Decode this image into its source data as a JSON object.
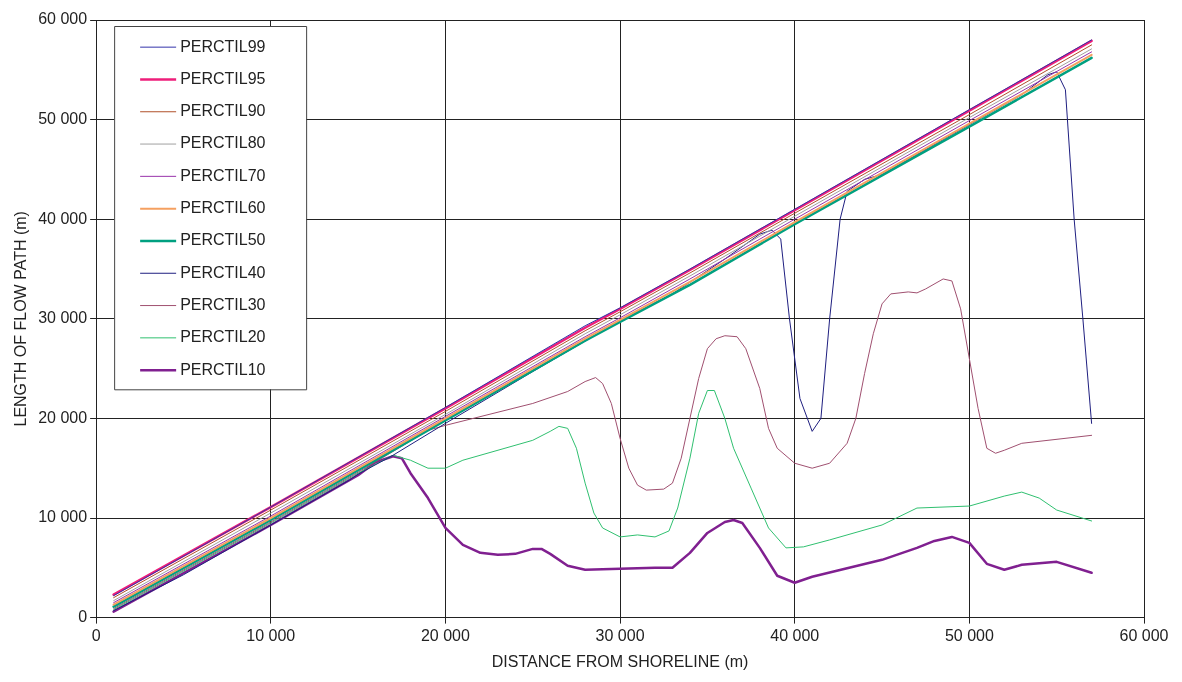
{
  "chart_data": {
    "type": "line",
    "xlabel": "DISTANCE FROM SHORELINE (m)",
    "ylabel": "LENGTH OF FLOW PATH (m)",
    "xlim": [
      0,
      60000
    ],
    "ylim": [
      0,
      60000
    ],
    "xticks": [
      0,
      {
        "value": 10000,
        "label": "10 000"
      },
      {
        "value": 20000,
        "label": "20 000"
      },
      {
        "value": 30000,
        "label": "30 000"
      },
      {
        "value": 40000,
        "label": "40 000"
      },
      {
        "value": 50000,
        "label": "50 000"
      },
      {
        "value": 60000,
        "label": "60 000"
      }
    ],
    "yticks": [
      0,
      {
        "value": 10000,
        "label": "10 000"
      },
      {
        "value": 20000,
        "label": "20 000"
      },
      {
        "value": 30000,
        "label": "30 000"
      },
      {
        "value": 40000,
        "label": "40 000"
      },
      {
        "value": 50000,
        "label": "50 000"
      },
      {
        "value": 60000,
        "label": "60 000"
      }
    ],
    "grid": true,
    "legend": "top left",
    "marker": "none",
    "line_style": "solid",
    "series": [
      {
        "name": "PERCTIL99",
        "color": "#3333aa",
        "x": [
          1000,
          10000,
          20000,
          28000,
          30000,
          34000,
          40000,
          50000,
          57000
        ],
        "values": [
          2200,
          11100,
          21100,
          29300,
          31100,
          35000,
          41000,
          51000,
          58000
        ]
      },
      {
        "name": "PERCTIL95",
        "color": "#ee1e7a",
        "x": [
          1000,
          10000,
          20000,
          28000,
          30000,
          34000,
          40000,
          50000,
          57000
        ],
        "values": [
          2300,
          11100,
          21000,
          29100,
          31000,
          34900,
          40900,
          50900,
          57900
        ]
      },
      {
        "name": "PERCTIL90",
        "color": "#b0502a",
        "x": [
          1000,
          10000,
          20000,
          28000,
          30000,
          34000,
          40000,
          50000,
          57000
        ],
        "values": [
          2000,
          10800,
          20700,
          28800,
          30700,
          34600,
          40600,
          50500,
          57500
        ]
      },
      {
        "name": "PERCTIL80",
        "color": "#a0a0a0",
        "x": [
          1000,
          10000,
          20000,
          28000,
          30000,
          34000,
          40000,
          50000,
          57000
        ],
        "values": [
          1700,
          10500,
          20400,
          28500,
          30400,
          34300,
          40300,
          50200,
          57100
        ]
      },
      {
        "name": "PERCTIL70",
        "color": "#9933aa",
        "x": [
          1000,
          10000,
          20000,
          28000,
          30000,
          34000,
          40000,
          50000,
          57000
        ],
        "values": [
          1500,
          10200,
          20200,
          28200,
          30100,
          34000,
          40000,
          49900,
          56800
        ]
      },
      {
        "name": "PERCTIL60",
        "color": "#f5a060",
        "x": [
          1000,
          10000,
          20000,
          28000,
          30000,
          34000,
          40000,
          50000,
          57000
        ],
        "values": [
          1300,
          10000,
          20000,
          28000,
          29900,
          33700,
          39700,
          49600,
          56500
        ]
      },
      {
        "name": "PERCTIL50",
        "color": "#00a080",
        "x": [
          1000,
          10000,
          20000,
          28000,
          30000,
          34000,
          40000,
          50000,
          57000
        ],
        "values": [
          1100,
          9800,
          19800,
          27800,
          29700,
          33400,
          39500,
          49300,
          56200
        ]
      },
      {
        "name": "PERCTIL40",
        "color": "#1f1f80",
        "x": [
          1000,
          5000,
          10000,
          14500,
          15000,
          17000,
          20000,
          25000,
          30000,
          33000,
          36000,
          38000,
          38700,
          39200,
          39700,
          40300,
          41000,
          41500,
          42000,
          42600,
          43000,
          44000,
          45000,
          50000,
          53000,
          54500,
          55000,
          55500,
          56000,
          56500,
          57000
        ],
        "values": [
          700,
          4300,
          9300,
          13800,
          14400,
          16300,
          19500,
          24700,
          29800,
          32500,
          36000,
          38500,
          38900,
          38000,
          30000,
          22000,
          18700,
          20000,
          30000,
          40000,
          42800,
          44000,
          44500,
          49500,
          52500,
          54500,
          54800,
          53000,
          40000,
          30000,
          19500
        ]
      },
      {
        "name": "PERCTIL30",
        "color": "#a05070",
        "x": [
          1000,
          10000,
          15000,
          17500,
          19000,
          20000,
          25000,
          27000,
          28000,
          28600,
          29000,
          29500,
          30000,
          30500,
          31000,
          31500,
          32500,
          33000,
          33500,
          34000,
          34500,
          35000,
          35500,
          36000,
          36700,
          37200,
          38000,
          38500,
          39000,
          40000,
          41000,
          42000,
          43000,
          43500,
          44000,
          44500,
          45000,
          45500,
          46500,
          47000,
          47500,
          48500,
          49000,
          49500,
          50000,
          50500,
          51000,
          51500,
          52000,
          53000,
          57000
        ],
        "values": [
          900,
          9600,
          14600,
          17200,
          18800,
          19300,
          21500,
          22700,
          23700,
          24100,
          23500,
          21500,
          18000,
          15000,
          13300,
          12800,
          12900,
          13500,
          16000,
          20000,
          24000,
          27000,
          28000,
          28300,
          28200,
          27000,
          23000,
          19000,
          17000,
          15500,
          15000,
          15500,
          17500,
          20000,
          24500,
          28500,
          31500,
          32500,
          32700,
          32600,
          33000,
          34000,
          33800,
          31000,
          26000,
          21000,
          17000,
          16500,
          16800,
          17500,
          18300
        ]
      },
      {
        "name": "PERCTIL20",
        "color": "#30c070",
        "x": [
          1000,
          10000,
          15000,
          17000,
          18000,
          19000,
          20000,
          21000,
          25000,
          26000,
          26500,
          27000,
          27500,
          28000,
          28500,
          29000,
          30000,
          31000,
          32000,
          32800,
          33300,
          34000,
          34500,
          35000,
          35400,
          36000,
          36500,
          37500,
          38500,
          39500,
          40500,
          42000,
          45000,
          47000,
          50000,
          52000,
          53000,
          54000,
          55000,
          57000
        ],
        "values": [
          800,
          9500,
          14500,
          16300,
          15800,
          15000,
          15000,
          15800,
          17800,
          18700,
          19200,
          19000,
          17000,
          13500,
          10500,
          9000,
          8100,
          8300,
          8100,
          8700,
          11000,
          16000,
          20500,
          22800,
          22800,
          20000,
          17000,
          13000,
          9000,
          7000,
          7100,
          7800,
          9300,
          11000,
          11200,
          12200,
          12600,
          12000,
          10800,
          9700
        ]
      },
      {
        "name": "PERCTIL10",
        "color": "#802090",
        "x": [
          1000,
          10000,
          15000,
          16000,
          17000,
          17500,
          18000,
          19000,
          20000,
          21000,
          22000,
          23000,
          24000,
          25000,
          25500,
          26000,
          27000,
          28000,
          30000,
          32000,
          33000,
          34000,
          35000,
          36000,
          36500,
          37000,
          38000,
          39000,
          40000,
          41000,
          45000,
          47000,
          48000,
          49000,
          50000,
          51000,
          52000,
          53000,
          55000,
          57000
        ],
        "values": [
          600,
          9300,
          14300,
          15600,
          16200,
          16000,
          14500,
          12000,
          9000,
          7300,
          6500,
          6300,
          6400,
          6900,
          6900,
          6400,
          5200,
          4800,
          4900,
          5000,
          5000,
          6500,
          8500,
          9600,
          9800,
          9500,
          7000,
          4200,
          3500,
          4100,
          5800,
          7000,
          7700,
          8100,
          7500,
          5400,
          4800,
          5300,
          5600,
          4500
        ]
      }
    ]
  }
}
